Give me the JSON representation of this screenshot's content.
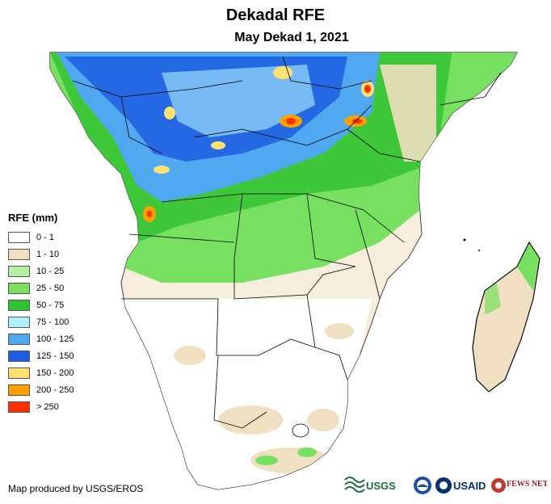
{
  "header": {
    "title": "Dekadal RFE",
    "subtitle": "May Dekad 1, 2021"
  },
  "legend": {
    "title": "RFE (mm)",
    "items": [
      {
        "label": "0 - 1",
        "color": "#ffffff"
      },
      {
        "label": "1 - 10",
        "color": "#f0dfc0"
      },
      {
        "label": "10 - 25",
        "color": "#b8f0a8"
      },
      {
        "label": "25 - 50",
        "color": "#78e060"
      },
      {
        "label": "50 - 75",
        "color": "#30c030"
      },
      {
        "label": "75 - 100",
        "color": "#b0f0ff"
      },
      {
        "label": "100 - 125",
        "color": "#50a8f0"
      },
      {
        "label": "125 - 150",
        "color": "#1c5ee0"
      },
      {
        "label": "150 - 200",
        "color": "#ffe070"
      },
      {
        "label": "200 - 250",
        "color": "#ffa000"
      },
      {
        "label": "> 250",
        "color": "#ff3000"
      }
    ]
  },
  "footer": {
    "credit": "Map produced by USGS/EROS",
    "logos": {
      "usgs": "USGS",
      "usaid": "USAID",
      "fewsnet": "FEWS NET"
    }
  }
}
